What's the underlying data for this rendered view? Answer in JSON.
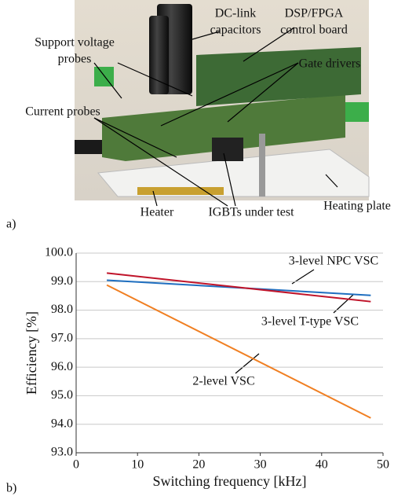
{
  "photo": {
    "panel_label": "a)",
    "labels": [
      {
        "lines": [
          "DC-link",
          "capacitors"
        ]
      },
      {
        "lines": [
          "DSP/FPGA",
          "control board"
        ]
      },
      {
        "lines": [
          "Support voltage",
          "probes"
        ]
      },
      {
        "lines": [
          "Gate drivers"
        ]
      },
      {
        "lines": [
          "Current probes"
        ]
      },
      {
        "lines": [
          "Heater"
        ]
      },
      {
        "lines": [
          "IGBTs under test"
        ]
      },
      {
        "lines": [
          "Heating plate"
        ]
      }
    ]
  },
  "chart_panel_label": "b)",
  "chart_data": {
    "type": "line",
    "x_label": "Switching frequency [kHz]",
    "y_label": "Efficiency [%]",
    "x": [
      5,
      48
    ],
    "series": [
      {
        "name": "3-level NPC VSC",
        "color": "#1f6fc0",
        "values": [
          99.05,
          98.52
        ]
      },
      {
        "name": "3-level T-type VSC",
        "color": "#c0142a",
        "values": [
          99.3,
          98.3
        ]
      },
      {
        "name": "2-level VSC",
        "color": "#f07f22",
        "values": [
          98.88,
          94.22
        ]
      }
    ],
    "xlim": [
      0,
      50
    ],
    "xticks": [
      0,
      10,
      20,
      30,
      40,
      50
    ],
    "ylim": [
      93,
      100
    ],
    "yticks": [
      {
        "value": 93,
        "label": "93.0"
      },
      {
        "value": 94,
        "label": "94.0"
      },
      {
        "value": 95,
        "label": "95.0"
      },
      {
        "value": 96,
        "label": "96.0"
      },
      {
        "value": 97,
        "label": "97.0"
      },
      {
        "value": 98,
        "label": "98.0"
      },
      {
        "value": 99,
        "label": "99.0"
      },
      {
        "value": 100,
        "label": "100.0"
      }
    ],
    "grid": true
  }
}
